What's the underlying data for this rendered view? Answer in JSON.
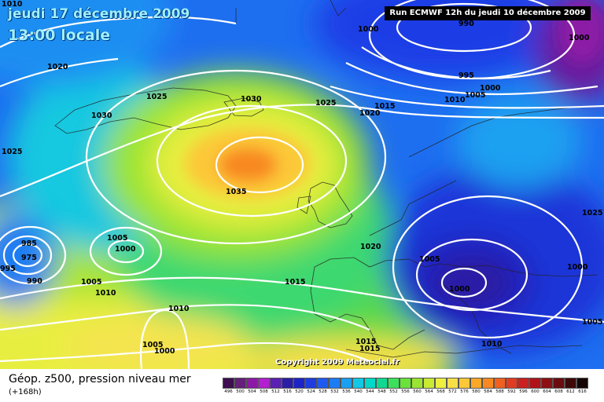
{
  "header": {
    "date_line": "jeudi 17 décembre 2009",
    "time_line": "13:00 locale",
    "run_info": "Run ECMWF 12h du jeudi 10 décembre 2009"
  },
  "copyright": "Copyright 2009 Meteociel.fr",
  "legend": {
    "title": "Géop. z500, pression niveau mer",
    "subtitle": "(+168h)",
    "scale_values": [
      "496",
      "500",
      "504",
      "508",
      "512",
      "516",
      "520",
      "524",
      "528",
      "532",
      "536",
      "540",
      "544",
      "548",
      "552",
      "556",
      "560",
      "564",
      "568",
      "572",
      "576",
      "580",
      "584",
      "588",
      "592",
      "596",
      "600",
      "604",
      "608",
      "612",
      "616"
    ],
    "scale_colors": [
      "#3d0f4f",
      "#64207a",
      "#8c1aa6",
      "#b31fd1",
      "#5a1fb3",
      "#2b1ea6",
      "#1d24c7",
      "#1e3ce0",
      "#1f5af0",
      "#1c7cf2",
      "#1aa0f0",
      "#12c8e6",
      "#00d8c8",
      "#10d890",
      "#3ce05a",
      "#6ae23a",
      "#9ae432",
      "#c8ea32",
      "#eef040",
      "#f8e048",
      "#fcc838",
      "#fba828",
      "#f88820",
      "#f06020",
      "#e03c24",
      "#cc2020",
      "#b01418",
      "#8c1014",
      "#6a0c10",
      "#3c0808",
      "#140404"
    ]
  },
  "isobar_labels": [
    {
      "text": "1010"
    },
    {
      "text": "1020"
    },
    {
      "text": "1025"
    },
    {
      "text": "1030"
    },
    {
      "text": "1025"
    },
    {
      "text": "1030"
    },
    {
      "text": "1035"
    },
    {
      "text": "1025"
    },
    {
      "text": "1015"
    },
    {
      "text": "1020"
    },
    {
      "text": "1000"
    },
    {
      "text": "990"
    },
    {
      "text": "1000"
    },
    {
      "text": "995"
    },
    {
      "text": "1000"
    },
    {
      "text": "1010"
    },
    {
      "text": "1005"
    },
    {
      "text": "985"
    },
    {
      "text": "975"
    },
    {
      "text": "990"
    },
    {
      "text": "995"
    },
    {
      "text": "1005"
    },
    {
      "text": "1000"
    },
    {
      "text": "1005"
    },
    {
      "text": "1010"
    },
    {
      "text": "1015"
    },
    {
      "text": "1020"
    },
    {
      "text": "1005"
    },
    {
      "text": "1000"
    },
    {
      "text": "1025"
    },
    {
      "text": "1000"
    },
    {
      "text": "1005"
    },
    {
      "text": "1010"
    },
    {
      "text": "1005"
    },
    {
      "text": "1000"
    },
    {
      "text": "1015"
    },
    {
      "text": "1015"
    },
    {
      "text": "1010"
    }
  ]
}
